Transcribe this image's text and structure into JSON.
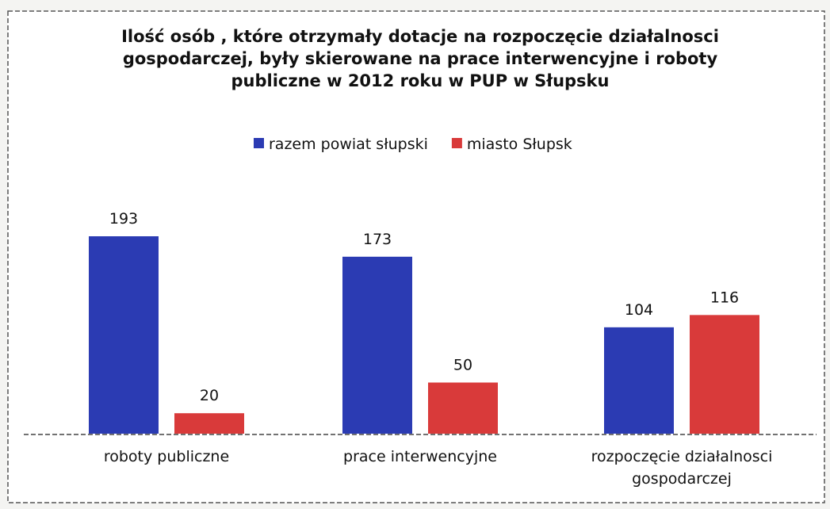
{
  "chart_data": {
    "type": "bar",
    "title": "Ilość osób , które otrzymały dotacje na rozpoczęcie działalnosci gospodarczej, były skierowane na prace interwencyjne i roboty publiczne w 2012 roku w PUP w Słupsku",
    "categories": [
      "roboty publiczne",
      "prace interwencyjne",
      "rozpoczęcie działalnosci gospodarczej"
    ],
    "series": [
      {
        "name": "razem powiat słupski",
        "color": "#2b3bb3",
        "values": [
          193,
          173,
          104
        ]
      },
      {
        "name": "miasto Słupsk",
        "color": "#d93a3a",
        "values": [
          20,
          50,
          116
        ]
      }
    ],
    "legend": "top"
  }
}
